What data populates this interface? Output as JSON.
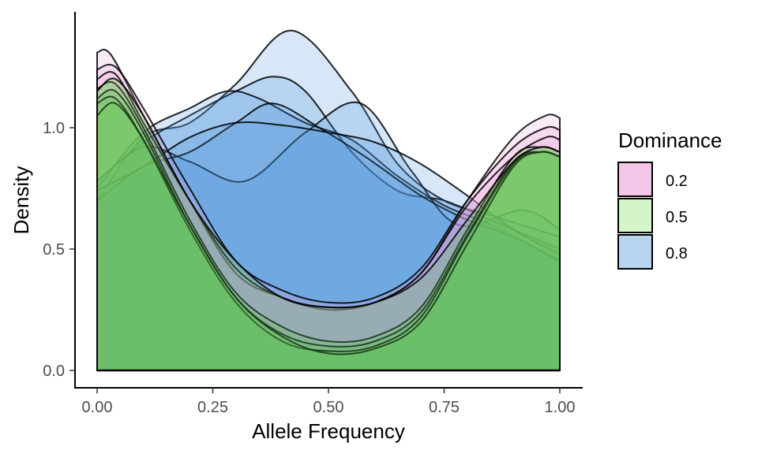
{
  "chart_data": {
    "type": "area",
    "xlabel": "Allele Frequency",
    "ylabel": "Density",
    "xlim": [
      0,
      1
    ],
    "ylim": [
      0,
      1.42
    ],
    "x_ticks": [
      "0.00",
      "0.25",
      "0.50",
      "0.75",
      "1.00"
    ],
    "y_ticks": [
      "0.0",
      "0.5",
      "1.0"
    ],
    "grid": false,
    "legend": {
      "title": "Dominance",
      "position": "right",
      "entries": [
        {
          "label": "0.2",
          "fill": "#f3c6e8"
        },
        {
          "label": "0.5",
          "fill": "#d4f5c8"
        },
        {
          "label": "0.8",
          "fill": "#b8d4ee"
        }
      ]
    },
    "groups": [
      {
        "label": "0.8",
        "fill": "#4a90d9",
        "alpha": 0.22,
        "curves": [
          {
            "x": [
              0,
              0.1,
              0.2,
              0.3,
              0.42,
              0.55,
              0.65,
              0.75,
              0.85,
              1.0
            ],
            "y": [
              0.7,
              0.96,
              1.02,
              1.18,
              1.4,
              1.15,
              0.85,
              0.7,
              0.64,
              0.55
            ]
          },
          {
            "x": [
              0,
              0.1,
              0.2,
              0.3,
              0.38,
              0.45,
              0.55,
              0.65,
              0.75,
              0.85,
              1.0
            ],
            "y": [
              0.78,
              0.94,
              1.05,
              1.15,
              1.21,
              1.15,
              0.9,
              0.74,
              0.7,
              0.62,
              0.5
            ]
          },
          {
            "x": [
              0,
              0.1,
              0.2,
              0.28,
              0.35,
              0.45,
              0.55,
              0.65,
              0.75,
              0.85,
              1.0
            ],
            "y": [
              0.75,
              0.98,
              1.08,
              1.15,
              1.12,
              1.02,
              0.95,
              0.8,
              0.68,
              0.6,
              0.45
            ]
          },
          {
            "x": [
              0,
              0.1,
              0.2,
              0.32,
              0.45,
              0.57,
              0.68,
              0.78,
              0.92,
              1.0
            ],
            "y": [
              0.78,
              0.92,
              0.86,
              0.78,
              0.98,
              1.1,
              0.82,
              0.6,
              0.66,
              0.58
            ]
          },
          {
            "x": [
              0,
              0.1,
              0.2,
              0.3,
              0.38,
              0.48,
              0.58,
              0.7,
              0.8,
              0.9,
              1.0
            ],
            "y": [
              0.7,
              0.84,
              0.9,
              1.02,
              1.1,
              1.0,
              0.88,
              0.72,
              0.62,
              0.55,
              0.45
            ]
          },
          {
            "x": [
              0,
              0.1,
              0.2,
              0.3,
              0.4,
              0.5,
              0.6,
              0.7,
              0.8,
              0.9,
              1.0
            ],
            "y": [
              0.74,
              0.84,
              0.96,
              1.02,
              1.01,
              0.98,
              0.94,
              0.85,
              0.72,
              0.58,
              0.48
            ]
          }
        ]
      },
      {
        "label": "0.2",
        "fill": "#e8a0d8",
        "alpha": 0.22,
        "curves": [
          {
            "x": [
              0,
              0.03,
              0.1,
              0.2,
              0.3,
              0.4,
              0.5,
              0.6,
              0.7,
              0.8,
              0.9,
              0.97,
              1.0
            ],
            "y": [
              1.31,
              1.3,
              1.05,
              0.7,
              0.4,
              0.3,
              0.25,
              0.28,
              0.4,
              0.7,
              0.96,
              1.05,
              1.04
            ]
          },
          {
            "x": [
              0,
              0.04,
              0.1,
              0.2,
              0.3,
              0.4,
              0.5,
              0.6,
              0.7,
              0.8,
              0.9,
              0.97,
              1.0
            ],
            "y": [
              1.24,
              1.25,
              1.08,
              0.75,
              0.45,
              0.33,
              0.28,
              0.3,
              0.42,
              0.7,
              0.92,
              1.0,
              0.99
            ]
          },
          {
            "x": [
              0,
              0.04,
              0.1,
              0.2,
              0.3,
              0.4,
              0.5,
              0.6,
              0.7,
              0.8,
              0.9,
              0.97,
              1.0
            ],
            "y": [
              1.2,
              1.22,
              1.02,
              0.7,
              0.42,
              0.3,
              0.26,
              0.28,
              0.4,
              0.68,
              0.88,
              0.96,
              0.95
            ]
          }
        ]
      },
      {
        "label": "0.5",
        "fill": "#58c848",
        "alpha": 0.26,
        "curves": [
          {
            "x": [
              0,
              0.04,
              0.1,
              0.2,
              0.3,
              0.4,
              0.5,
              0.6,
              0.7,
              0.8,
              0.9,
              0.96,
              1.0
            ],
            "y": [
              1.16,
              1.18,
              1.0,
              0.62,
              0.32,
              0.18,
              0.12,
              0.14,
              0.26,
              0.58,
              0.88,
              0.92,
              0.9
            ]
          },
          {
            "x": [
              0,
              0.04,
              0.1,
              0.2,
              0.3,
              0.4,
              0.5,
              0.6,
              0.7,
              0.8,
              0.9,
              0.96,
              1.0
            ],
            "y": [
              1.12,
              1.15,
              0.98,
              0.6,
              0.3,
              0.15,
              0.1,
              0.12,
              0.24,
              0.56,
              0.86,
              0.9,
              0.88
            ]
          },
          {
            "x": [
              0,
              0.04,
              0.1,
              0.2,
              0.3,
              0.4,
              0.5,
              0.6,
              0.7,
              0.8,
              0.9,
              0.96,
              1.0
            ],
            "y": [
              1.1,
              1.12,
              0.95,
              0.58,
              0.28,
              0.12,
              0.08,
              0.1,
              0.22,
              0.55,
              0.85,
              0.9,
              0.88
            ]
          },
          {
            "x": [
              0,
              0.04,
              0.1,
              0.2,
              0.3,
              0.4,
              0.5,
              0.6,
              0.7,
              0.8,
              0.9,
              0.96,
              1.0
            ],
            "y": [
              1.05,
              1.1,
              0.95,
              0.6,
              0.3,
              0.14,
              0.07,
              0.09,
              0.2,
              0.52,
              0.84,
              0.9,
              0.88
            ]
          },
          {
            "x": [
              0,
              0.04,
              0.1,
              0.2,
              0.3,
              0.4,
              0.5,
              0.6,
              0.7,
              0.8,
              0.9,
              0.96,
              1.0
            ],
            "y": [
              1.15,
              1.2,
              1.05,
              0.7,
              0.45,
              0.3,
              0.26,
              0.28,
              0.38,
              0.62,
              0.86,
              0.92,
              0.9
            ]
          }
        ]
      }
    ]
  }
}
